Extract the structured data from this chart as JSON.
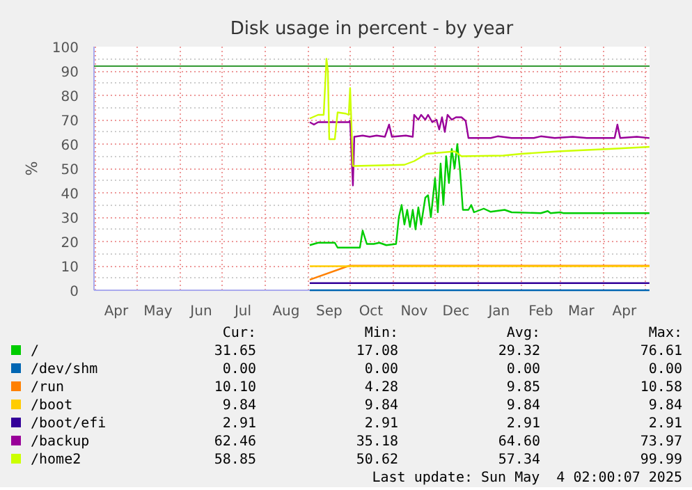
{
  "chart_data": {
    "type": "line",
    "title": "Disk usage in percent - by year",
    "ylabel": "%",
    "xlim": [
      "2024-03-31",
      "2025-05-04T02:00"
    ],
    "xticks": [
      {
        "value": "2024-04-01",
        "label": null
      },
      {
        "value": "2024-04-16",
        "label": "Apr"
      },
      {
        "value": "2024-05-01",
        "label": null
      },
      {
        "value": "2024-05-16",
        "label": "May"
      },
      {
        "value": "2024-06-01",
        "label": null
      },
      {
        "value": "2024-06-16",
        "label": "Jun"
      },
      {
        "value": "2024-07-01",
        "label": null
      },
      {
        "value": "2024-07-16",
        "label": "Jul"
      },
      {
        "value": "2024-08-01",
        "label": null
      },
      {
        "value": "2024-08-16",
        "label": "Aug"
      },
      {
        "value": "2024-09-01",
        "label": null
      },
      {
        "value": "2024-09-16",
        "label": "Sep"
      },
      {
        "value": "2024-10-01",
        "label": null
      },
      {
        "value": "2024-10-16",
        "label": "Oct"
      },
      {
        "value": "2024-11-01",
        "label": null
      },
      {
        "value": "2024-11-16",
        "label": "Nov"
      },
      {
        "value": "2024-12-01",
        "label": null
      },
      {
        "value": "2024-12-16",
        "label": "Dec"
      },
      {
        "value": "2025-01-01",
        "label": null
      },
      {
        "value": "2025-01-16",
        "label": "Jan"
      },
      {
        "value": "2025-02-01",
        "label": null
      },
      {
        "value": "2025-02-15",
        "label": "Feb"
      },
      {
        "value": "2025-03-01",
        "label": null
      },
      {
        "value": "2025-03-16",
        "label": "Mar"
      },
      {
        "value": "2025-04-01",
        "label": null
      },
      {
        "value": "2025-04-16",
        "label": "Apr"
      },
      {
        "value": "2025-05-01",
        "label": null
      }
    ],
    "ylim": [
      0,
      100
    ],
    "yticks": [
      0,
      10,
      20,
      30,
      40,
      50,
      60,
      70,
      80,
      90,
      100
    ],
    "grid": true,
    "legend": "bottom",
    "ref_lines": [
      {
        "axis": "y",
        "value": 92,
        "label": null,
        "color": "#339933"
      }
    ],
    "series": [
      {
        "name": "/",
        "color": "#00cc00",
        "x": [
          "2024-09-02",
          "2024-09-08",
          "2024-09-20",
          "2024-09-22",
          "2024-10-08",
          "2024-10-10",
          "2024-10-13",
          "2024-10-18",
          "2024-10-22",
          "2024-10-27",
          "2024-11-03",
          "2024-11-05",
          "2024-11-07",
          "2024-11-09",
          "2024-11-11",
          "2024-11-13",
          "2024-11-15",
          "2024-11-17",
          "2024-11-19",
          "2024-11-21",
          "2024-11-24",
          "2024-11-26",
          "2024-11-28",
          "2024-12-01",
          "2024-12-03",
          "2024-12-05",
          "2024-12-07",
          "2024-12-09",
          "2024-12-11",
          "2024-12-13",
          "2024-12-15",
          "2024-12-17",
          "2024-12-19",
          "2024-12-21",
          "2024-12-25",
          "2024-12-27",
          "2024-12-29",
          "2025-01-05",
          "2025-01-10",
          "2025-01-20",
          "2025-01-25",
          "2025-02-15",
          "2025-02-20",
          "2025-02-22",
          "2025-03-01",
          "2025-03-03",
          "2025-05-04"
        ],
        "values": [
          18.5,
          19.5,
          19.5,
          17.5,
          17.5,
          24.5,
          19,
          19,
          19.5,
          18.5,
          19,
          30,
          35,
          27,
          33,
          26,
          33,
          25,
          34,
          27,
          38,
          39,
          30,
          46,
          32,
          52,
          35,
          55,
          44,
          58,
          50,
          60,
          49,
          33,
          33,
          35,
          32,
          33.5,
          32.2,
          33,
          32,
          31.65,
          32.5,
          31.65,
          32,
          31.65,
          31.65
        ]
      },
      {
        "name": "/dev/shm",
        "color": "#0066b3",
        "x": [
          "2024-09-02",
          "2025-05-04"
        ],
        "values": [
          0,
          0
        ]
      },
      {
        "name": "/run",
        "color": "#ff8000",
        "x": [
          "2024-09-02",
          "2024-09-30",
          "2024-10-02",
          "2025-05-04"
        ],
        "values": [
          4.3,
          10.0,
          10.1,
          10.1
        ]
      },
      {
        "name": "/boot",
        "color": "#ffcc00",
        "x": [
          "2024-09-02",
          "2025-05-04"
        ],
        "values": [
          9.84,
          9.84
        ]
      },
      {
        "name": "/boot/efi",
        "color": "#330099",
        "x": [
          "2024-09-02",
          "2025-05-04"
        ],
        "values": [
          2.91,
          2.91
        ]
      },
      {
        "name": "/backup",
        "color": "#990099",
        "x": [
          "2024-09-02",
          "2024-09-05",
          "2024-09-08",
          "2024-09-30",
          "2024-10-01",
          "2024-10-03",
          "2024-10-04",
          "2024-10-10",
          "2024-10-15",
          "2024-10-20",
          "2024-10-26",
          "2024-10-29",
          "2024-10-31",
          "2024-11-10",
          "2024-11-15",
          "2024-11-16",
          "2024-11-19",
          "2024-11-21",
          "2024-11-24",
          "2024-11-26",
          "2024-11-29",
          "2024-12-02",
          "2024-12-04",
          "2024-12-06",
          "2024-12-08",
          "2024-12-10",
          "2024-12-13",
          "2024-12-16",
          "2024-12-20",
          "2024-12-23",
          "2024-12-25",
          "2025-01-10",
          "2025-01-15",
          "2025-01-25",
          "2025-02-10",
          "2025-02-15",
          "2025-02-25",
          "2025-03-10",
          "2025-03-20",
          "2025-04-09",
          "2025-04-11",
          "2025-04-13",
          "2025-04-25",
          "2025-05-04"
        ],
        "values": [
          69,
          68,
          69,
          69,
          69.5,
          43,
          63,
          63.5,
          63,
          63.5,
          63,
          68,
          63,
          63.5,
          63,
          72,
          70,
          72,
          70,
          72,
          69,
          70,
          66,
          71,
          65,
          72,
          70,
          71,
          71,
          69.5,
          62.5,
          62.5,
          63.2,
          62.5,
          62.5,
          63.2,
          62.5,
          63,
          62.5,
          62.5,
          68,
          62.5,
          63,
          62.46
        ]
      },
      {
        "name": "/home2",
        "color": "#ccff00",
        "x": [
          "2024-09-02",
          "2024-09-08",
          "2024-09-12",
          "2024-09-14",
          "2024-09-15",
          "2024-09-16",
          "2024-09-20",
          "2024-09-22",
          "2024-09-28",
          "2024-09-30",
          "2024-10-01",
          "2024-10-03",
          "2024-11-09",
          "2024-11-16",
          "2024-11-25",
          "2024-12-15",
          "2024-12-20",
          "2025-01-19",
          "2025-02-01",
          "2025-02-27",
          "2025-04-05",
          "2025-05-04"
        ],
        "values": [
          70.5,
          72,
          72,
          95,
          90,
          62,
          62,
          73,
          72.5,
          72,
          83,
          51,
          51.5,
          53,
          56,
          57,
          55,
          55.3,
          56,
          57,
          58,
          58.85
        ]
      }
    ],
    "annotations": [
      "Cur:",
      "Min:",
      "Avg:",
      "Max:",
      "31.65",
      "17.08",
      "29.32",
      "76.61",
      "0.00",
      "0.00",
      "0.00",
      "0.00",
      "10.10",
      "4.28",
      "9.85",
      "10.58",
      "9.84",
      "9.84",
      "9.84",
      "9.84",
      "2.91",
      "2.91",
      "2.91",
      "2.91",
      "62.46",
      "35.18",
      "64.60",
      "73.97",
      "58.85",
      "50.62",
      "57.34",
      "99.99",
      "Last update: Sun May  4 02:00:07 2025"
    ]
  }
}
